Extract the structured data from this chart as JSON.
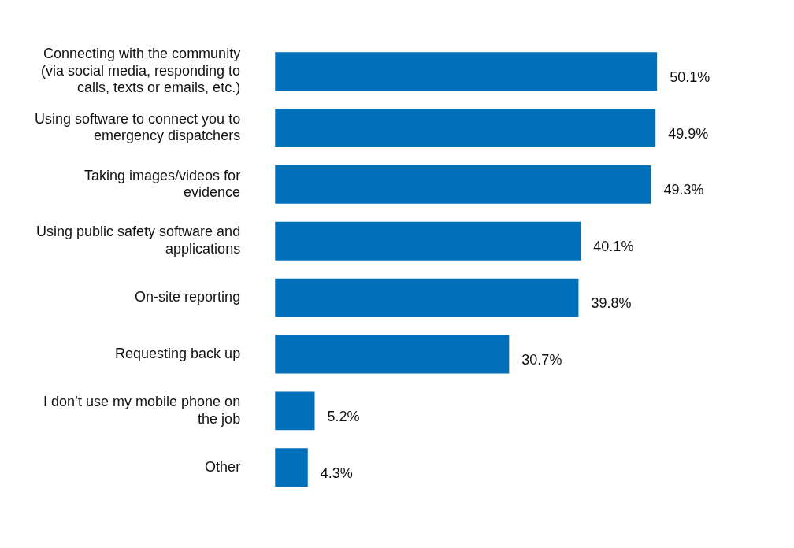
{
  "chart_data": {
    "type": "bar",
    "orientation": "horizontal",
    "categories": [
      "Connecting with the community (via social media, responding to calls, texts or emails, etc.)",
      "Using software to connect you to emergency dispatchers",
      "Taking images/videos for evidence",
      "Using public safety software and applications",
      "On-site reporting",
      "Requesting back up",
      "I don’t use my mobile phone on the job",
      "Other"
    ],
    "values": [
      50.1,
      49.9,
      49.3,
      40.1,
      39.8,
      30.7,
      5.2,
      4.3
    ],
    "value_labels": [
      "50.1%",
      "49.9%",
      "49.3%",
      "40.1%",
      "39.8%",
      "30.7%",
      "5.2%",
      "4.3%"
    ],
    "color": "#0070ba",
    "grid": false,
    "legend": false
  }
}
